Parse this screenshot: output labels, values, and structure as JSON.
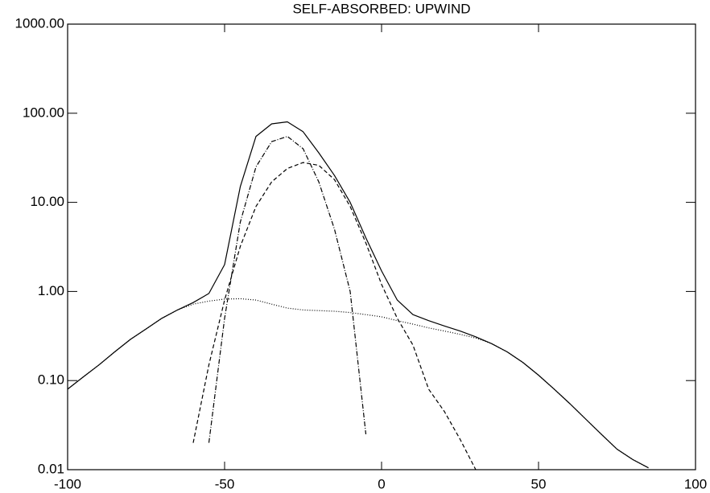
{
  "chart_data": {
    "type": "line",
    "title": "SELF-ABSORBED: UPWIND",
    "x": [
      -100,
      -95,
      -90,
      -85,
      -80,
      -75,
      -70,
      -65,
      -60,
      -55,
      -50,
      -45,
      -40,
      -35,
      -30,
      -25,
      -20,
      -15,
      -10,
      -5,
      0,
      5,
      10,
      15,
      20,
      25,
      30,
      35,
      40,
      45,
      50,
      55,
      60,
      65,
      70,
      75,
      80,
      85,
      90,
      95,
      100
    ],
    "series": [
      {
        "color": "#000000",
        "dash": "solid",
        "values": [
          0.08,
          0.11,
          0.15,
          0.21,
          0.29,
          0.38,
          0.5,
          0.62,
          0.75,
          0.95,
          2.0,
          15,
          55,
          76,
          80,
          62,
          36,
          20,
          10,
          4.0,
          1.7,
          0.8,
          0.55,
          0.47,
          0.41,
          0.36,
          0.31,
          0.26,
          0.21,
          0.16,
          0.115,
          0.08,
          0.055,
          0.037,
          0.025,
          0.017,
          0.013,
          0.0105,
          null,
          null,
          null
        ]
      },
      {
        "color": "#000000",
        "dash": "dashed",
        "values": [
          null,
          null,
          null,
          null,
          null,
          null,
          null,
          null,
          0.02,
          0.15,
          0.8,
          3.2,
          9,
          17,
          24,
          28,
          26,
          18,
          9,
          3.5,
          1.2,
          0.5,
          0.25,
          0.08,
          0.045,
          0.022,
          0.01,
          null,
          null,
          null,
          null,
          null,
          null,
          null,
          null,
          null,
          null,
          null,
          null,
          null,
          null
        ]
      },
      {
        "color": "#000000",
        "dash": "dashdot",
        "values": [
          null,
          null,
          null,
          null,
          null,
          null,
          null,
          null,
          null,
          0.02,
          0.5,
          6,
          25,
          48,
          55,
          40,
          17,
          5,
          1.0,
          0.025,
          null,
          null,
          null,
          null,
          null,
          null,
          null,
          null,
          null,
          null,
          null,
          null,
          null,
          null,
          null,
          null,
          null,
          null,
          null,
          null,
          null
        ]
      },
      {
        "color": "#000000",
        "dash": "dotted",
        "values": [
          0.08,
          0.11,
          0.15,
          0.21,
          0.29,
          0.38,
          0.5,
          0.62,
          0.72,
          0.78,
          0.82,
          0.83,
          0.8,
          0.72,
          0.65,
          0.62,
          0.61,
          0.6,
          0.58,
          0.55,
          0.52,
          0.47,
          0.43,
          0.39,
          0.36,
          0.33,
          0.3,
          0.26,
          0.21,
          0.16,
          0.115,
          0.08,
          0.055,
          0.037,
          0.025,
          0.017,
          0.013,
          0.0105,
          null,
          null,
          null
        ]
      }
    ],
    "xlim": [
      -100,
      100
    ],
    "xticks": [
      -100,
      -50,
      0,
      50,
      100
    ],
    "ylim": [
      0.01,
      1000
    ],
    "ylog": true,
    "yticks": [
      {
        "value": 0.01,
        "label": "0.01"
      },
      {
        "value": 0.1,
        "label": "0.10"
      },
      {
        "value": 1,
        "label": "1.00"
      },
      {
        "value": 10,
        "label": "10.00"
      },
      {
        "value": 100,
        "label": "100.00"
      },
      {
        "value": 1000,
        "label": "1000.00"
      }
    ]
  }
}
